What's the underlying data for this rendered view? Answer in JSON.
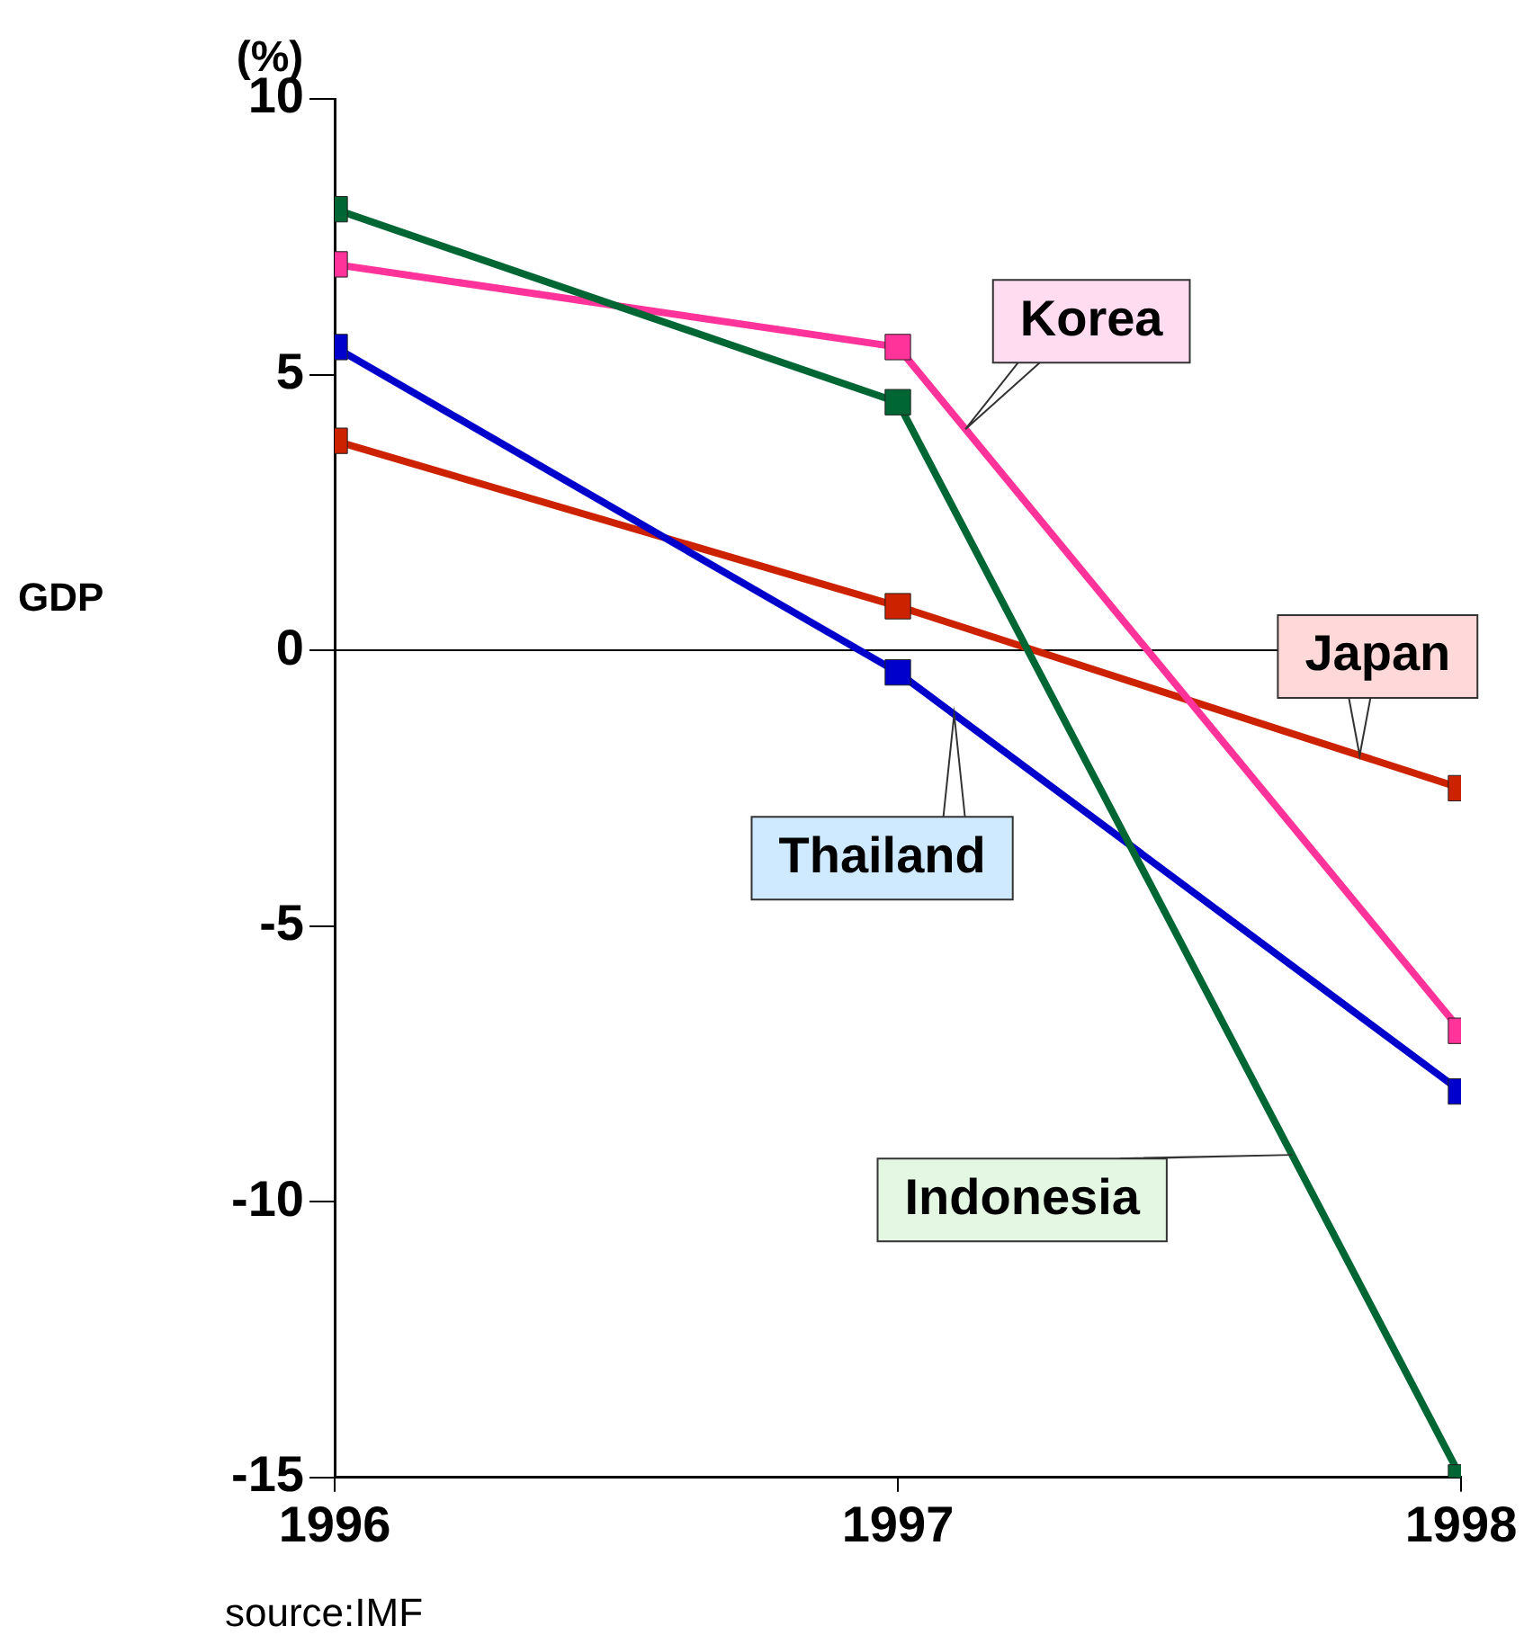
{
  "chart_data": {
    "type": "line",
    "ylabel": "GDP",
    "x": [
      1996,
      1997,
      1998
    ],
    "xlim": [
      1996,
      1998
    ],
    "xticks": [
      1996,
      1997,
      1998
    ],
    "ylim": [
      -15,
      10
    ],
    "yticks": [
      -15,
      -10,
      -5,
      0,
      5,
      10
    ],
    "series": [
      {
        "name": "Indonesia",
        "color": "#006633",
        "values": [
          8.0,
          4.5,
          -15
        ]
      },
      {
        "name": "Korea",
        "color": "#ff3399",
        "values": [
          7.0,
          5.5,
          -6.9
        ]
      },
      {
        "name": "Thailand",
        "color": "#0000cc",
        "values": [
          5.5,
          -0.4,
          -8.0
        ]
      },
      {
        "name": "Japan",
        "color": "#cc2200",
        "values": [
          3.8,
          0.8,
          -2.5
        ]
      }
    ],
    "ref_lines": [
      {
        "axis": "y",
        "value": 0,
        "color": "#000000"
      }
    ],
    "annotations": [
      "(%)",
      "source:IMF"
    ],
    "grid": false,
    "legend": false,
    "marker": "square",
    "line_style": "solid"
  }
}
